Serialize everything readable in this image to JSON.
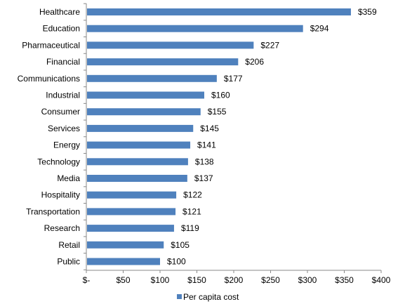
{
  "chart_data": {
    "type": "bar",
    "orientation": "horizontal",
    "categories": [
      "Healthcare",
      "Education",
      "Pharmaceutical",
      "Financial",
      "Communications",
      "Industrial",
      "Consumer",
      "Services",
      "Energy",
      "Technology",
      "Media",
      "Hospitality",
      "Transportation",
      "Research",
      "Retail",
      "Public"
    ],
    "series": [
      {
        "name": "Per capita cost",
        "values": [
          359,
          294,
          227,
          206,
          177,
          160,
          155,
          145,
          141,
          138,
          137,
          122,
          121,
          119,
          105,
          100
        ],
        "color": "#4F81BD"
      }
    ],
    "data_labels": [
      "$359",
      "$294",
      "$227",
      "$206",
      "$177",
      "$160",
      "$155",
      "$145",
      "$141",
      "$138",
      "$137",
      "$122",
      "$121",
      "$119",
      "$105",
      "$100"
    ],
    "xlim": [
      0,
      400
    ],
    "x_ticks": [
      0,
      50,
      100,
      150,
      200,
      250,
      300,
      350,
      400
    ],
    "x_tick_labels": [
      "$-",
      "$50",
      "$100",
      "$150",
      "$200",
      "$250",
      "$300",
      "$350",
      "$400"
    ],
    "grid": false,
    "legend_position": "bottom",
    "title": "",
    "xlabel": "",
    "ylabel": ""
  }
}
